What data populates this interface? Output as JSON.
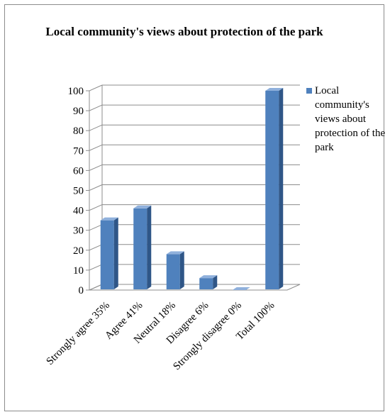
{
  "chart_data": {
    "type": "bar",
    "title": "Local community's views about protection of the park",
    "categories": [
      "Strongly agree 35%",
      "Agree 41%",
      "Neutral 18%",
      "Disagree 6%",
      "Strongly disagree 0%",
      "Total 100%"
    ],
    "series": [
      {
        "name": "Local community's views about protection of the park",
        "values": [
          35,
          41,
          18,
          6,
          0,
          100
        ]
      }
    ],
    "ylim": [
      0,
      100
    ],
    "yticks": [
      0,
      10,
      20,
      30,
      40,
      50,
      60,
      70,
      80,
      90,
      100
    ],
    "grid": true,
    "legend_position": "right",
    "colors": {
      "bar_front": "#4f81bd",
      "bar_side": "#2f5687",
      "bar_top": "#8fb0dc",
      "grid": "#8c8c8c"
    }
  }
}
